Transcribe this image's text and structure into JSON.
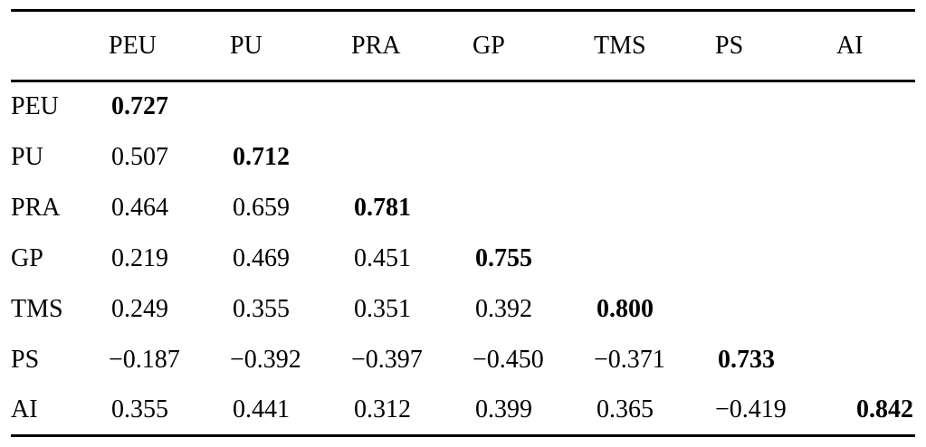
{
  "table": {
    "column_headers": [
      "PEU",
      "PU",
      "PRA",
      "GP",
      "TMS",
      "PS",
      "AI"
    ],
    "rows": [
      {
        "label": "PEU",
        "values": [
          "0.727"
        ]
      },
      {
        "label": "PU",
        "values": [
          "0.507",
          "0.712"
        ]
      },
      {
        "label": "PRA",
        "values": [
          "0.464",
          "0.659",
          "0.781"
        ]
      },
      {
        "label": "GP",
        "values": [
          "0.219",
          "0.469",
          "0.451",
          "0.755"
        ]
      },
      {
        "label": "TMS",
        "values": [
          "0.249",
          "0.355",
          "0.351",
          "0.392",
          "0.800"
        ]
      },
      {
        "label": "PS",
        "values": [
          "−0.187",
          "−0.392",
          "−0.397",
          "−0.450",
          "−0.371",
          "0.733"
        ]
      },
      {
        "label": "AI",
        "values": [
          "0.355",
          "0.441",
          "0.312",
          "0.399",
          "0.365",
          "−0.419",
          "0.842"
        ]
      }
    ],
    "diagonal_bold": true,
    "colors": {
      "text": "#000000",
      "background": "#ffffff",
      "rule": "#000000"
    }
  }
}
